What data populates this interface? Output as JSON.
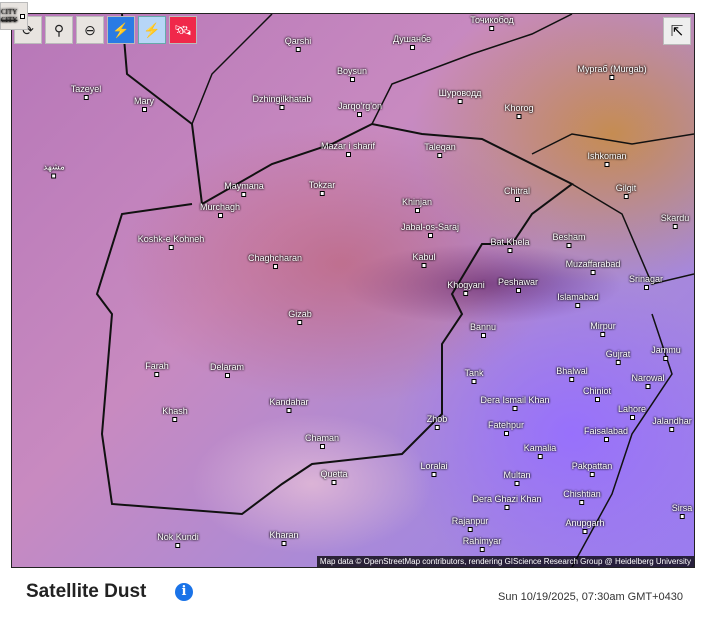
{
  "toolbar": {
    "buttons": [
      {
        "name": "refresh-button",
        "icon": "refresh-icon",
        "glyph": "⟳"
      },
      {
        "name": "location-button",
        "icon": "location-pin-icon",
        "glyph": "⚲"
      },
      {
        "name": "zoom-out-button",
        "icon": "zoom-out-icon",
        "glyph": "⊖"
      },
      {
        "name": "city-labels-toggle",
        "icon": "city-labels-icon",
        "label": "CITY"
      },
      {
        "name": "lightning-button",
        "icon": "lightning-icon",
        "glyph": "⚡"
      },
      {
        "name": "lightning-ground-button",
        "icon": "lightning-strike-icon",
        "glyph": "⚡"
      },
      {
        "name": "satellite-button",
        "icon": "satellite-icon",
        "glyph": "🛰"
      }
    ]
  },
  "share": {
    "icon": "share-icon",
    "glyph": "⇱"
  },
  "cities": [
    "Qarshi",
    "Душанбе",
    "Точикобод",
    "Boysun",
    "Tazeyel",
    "Mary",
    "Dzhingilkhatab",
    "Jarqo'rg'on",
    "Шуроводд",
    "Khorog",
    "Мургаб (Murgab)",
    "Mazar i sharif",
    "Taleqan",
    "Ishkoman",
    "مشهد",
    "Maymana",
    "Tokzar",
    "Khinjan",
    "Chitral",
    "Gilgit",
    "Murchagh",
    "Jabal-os-Saraj",
    "Skardu",
    "Koshk-e Kohneh",
    "Bat Khela",
    "Besham",
    "Kabul",
    "Muzaffarabad",
    "Srinagar",
    "Chaghcharan",
    "Peshawar",
    "Khogyani",
    "Islamabad",
    "Gizab",
    "Bannu",
    "Mirpur",
    "Jammu",
    "Farah",
    "Delaram",
    "Tank",
    "Bhalwal",
    "Gujrat",
    "Narowal",
    "Khash",
    "Kandahar",
    "Dera Ismail Khan",
    "Chiniot",
    "Lahore",
    "Jalandhar",
    "Zhob",
    "Fatehpur",
    "Faisalabad",
    "Chaman",
    "Kamalia",
    "Loralai",
    "Quetta",
    "Multan",
    "Pakpattan",
    "Dera Ghazi Khan",
    "Chishtian",
    "Sirsa",
    "Anupgarh",
    "Rajanpur",
    "Nok Kundi",
    "Kharan",
    "Rahimyar"
  ],
  "attribution": "Map data © OpenStreetMap contributors, rendering GIScience Research Group @ Heidelberg University",
  "footer": {
    "title": "Satellite Dust",
    "info_icon": "info-icon",
    "timestamp": "Sun 10/19/2025, 07:30am GMT+0430"
  }
}
